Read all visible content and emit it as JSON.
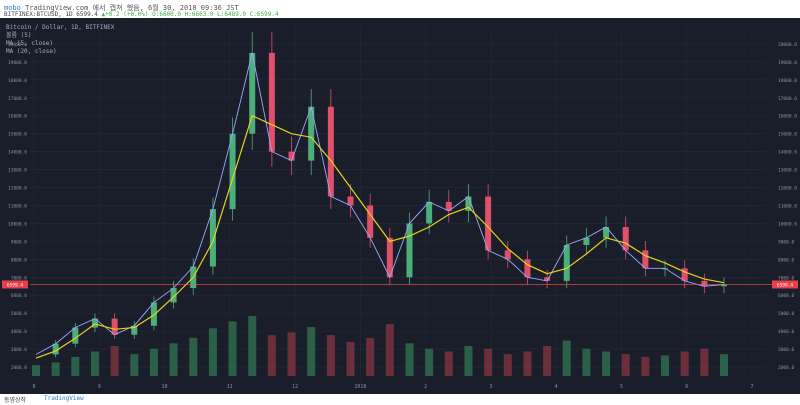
{
  "header": {
    "brand": "mobo",
    "source_text": "TradingView.com 에서 캡쳐 했음, 6월 30, 2018 09:36 JST",
    "ticker": "BITFINEX:BTCUSD, 1D 6599.4",
    "change": "▲+0.2 (+0.0%) O:6600.0 H:6663.0 L:6489.0 C:6599.4"
  },
  "legend": {
    "title": "Bitcoin / Dollar, 1D, BITFINEX",
    "volume": "볼륨 (5)",
    "ma1": "MA (5, close)",
    "ma2": "MA (20, close)"
  },
  "footer": {
    "left": "동영상작",
    "logo": "TradingView"
  },
  "colors": {
    "background": "#1a1e2b",
    "up": "#4caf7a",
    "down": "#e0506a",
    "ma_fast": "#9aa7ff",
    "ma_slow": "#e6d21a",
    "price_line": "#ff4d4d",
    "price_badge": "#e8404a"
  },
  "chart_data": {
    "type": "line",
    "x": [
      "2017-07-15",
      "2017-08-01",
      "2017-08-15",
      "2017-09-01",
      "2017-09-15",
      "2017-10-01",
      "2017-10-15",
      "2017-11-01",
      "2017-11-15",
      "2017-12-01",
      "2017-12-10",
      "2017-12-17",
      "2017-12-25",
      "2018-01-01",
      "2018-01-07",
      "2018-01-15",
      "2018-01-22",
      "2018-02-01",
      "2018-02-06",
      "2018-02-15",
      "2018-02-20",
      "2018-03-01",
      "2018-03-05",
      "2018-03-15",
      "2018-03-25",
      "2018-04-01",
      "2018-04-10",
      "2018-04-20",
      "2018-05-01",
      "2018-05-05",
      "2018-05-15",
      "2018-05-25",
      "2018-06-01",
      "2018-06-10",
      "2018-06-20",
      "2018-06-29"
    ],
    "series": [
      {
        "values": [
          2700,
          3300,
          4200,
          4700,
          3800,
          4300,
          5600,
          6400,
          7600,
          10800,
          15000,
          19500,
          14000,
          13500,
          16500,
          11500,
          11000,
          9200,
          7000,
          10000,
          11200,
          10700,
          11500,
          8500,
          8000,
          7000,
          6800,
          8800,
          9200,
          9800,
          8500,
          7500,
          7500,
          6800,
          6500,
          6599
        ]
      },
      {
        "values": [
          2500,
          2900,
          3600,
          4400,
          4100,
          4200,
          4900,
          5900,
          7000,
          9000,
          12500,
          16000,
          15500,
          15000,
          14800,
          13500,
          12000,
          10500,
          9000,
          9300,
          9800,
          10500,
          10900,
          9800,
          8600,
          7700,
          7200,
          7500,
          8300,
          9200,
          8900,
          8200,
          7800,
          7300,
          6900,
          6700
        ]
      }
    ],
    "volume": [
      8,
      10,
      14,
      18,
      22,
      16,
      20,
      24,
      28,
      35,
      40,
      44,
      30,
      32,
      36,
      30,
      25,
      28,
      38,
      24,
      20,
      18,
      22,
      20,
      16,
      18,
      22,
      26,
      20,
      18,
      16,
      14,
      15,
      18,
      20,
      16
    ],
    "x_tick_labels": [
      "8",
      "9",
      "10",
      "11",
      "12",
      "2018",
      "2",
      "3",
      "4",
      "5",
      "6",
      "7"
    ],
    "y_tick_labels": [
      "2000.0",
      "3000.0",
      "4000.0",
      "5000.0",
      "6000.0",
      "7000.0",
      "8000.0",
      "9000.0",
      "10000.0",
      "11000.0",
      "12000.0",
      "13000.0",
      "14000.0",
      "15000.0",
      "16000.0",
      "17000.0",
      "18000.0",
      "19000.0",
      "20000.0"
    ],
    "current_price_label": "6599.4",
    "ylim": [
      1500,
      21000
    ],
    "grid": true
  }
}
